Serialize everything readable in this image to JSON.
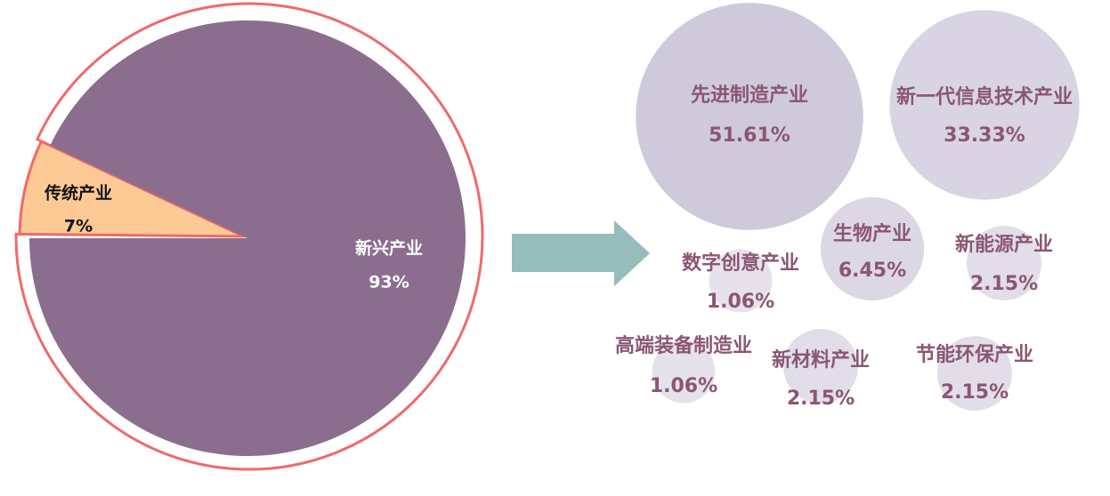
{
  "chart_data": [
    {
      "type": "pie",
      "categories": [
        "传统产业",
        "新兴产业"
      ],
      "values": [
        7,
        93
      ],
      "value_labels": [
        "7%",
        "93%"
      ],
      "colors": [
        "#fdc994",
        "#8b6e8e"
      ],
      "outline_color": "#ef6a6a"
    },
    {
      "type": "bubble",
      "categories": [
        "先进制造产业",
        "新一代信息技术产业",
        "生物产业",
        "新能源产业",
        "数字创意产业",
        "高端装备制造业",
        "新材料产业",
        "节能环保产业"
      ],
      "values": [
        51.61,
        33.33,
        6.45,
        2.15,
        1.06,
        1.06,
        2.15,
        2.15
      ],
      "value_labels": [
        "51.61%",
        "33.33%",
        "6.45%",
        "2.15%",
        "1.06%",
        "1.06%",
        "2.15%",
        "2.15%"
      ],
      "colors": [
        "#cfcadb",
        "#d9d4e3",
        "#dcd7e5",
        "#e2dee9",
        "#e6e2ec",
        "#e6e2ec",
        "#e2dee9",
        "#e2dee9"
      ],
      "label_color": "#8b5673"
    }
  ]
}
